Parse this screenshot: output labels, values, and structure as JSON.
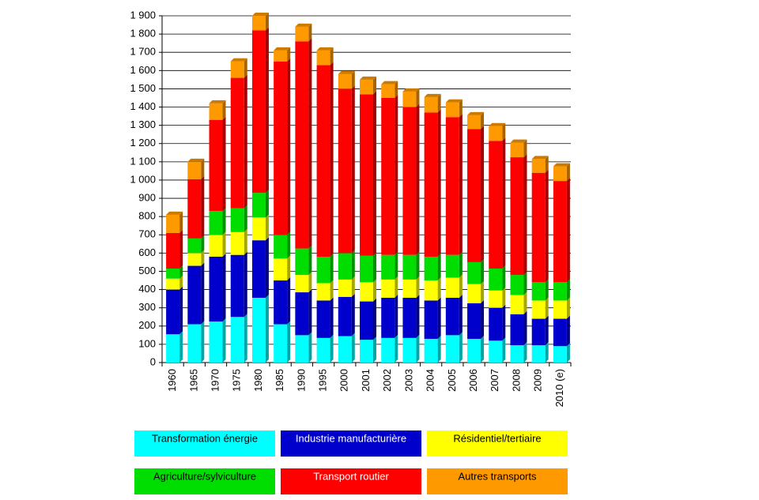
{
  "chart_data": {
    "type": "stacked-bar",
    "categories": [
      "1960",
      "1965",
      "1970",
      "1975",
      "1980",
      "1985",
      "1990",
      "1995",
      "2000",
      "2001",
      "2002",
      "2003",
      "2004",
      "2005",
      "2006",
      "2007",
      "2008",
      "2009",
      "2010 (e)"
    ],
    "series": [
      {
        "name": "Transformation énergie",
        "color": "#00ffff",
        "values": [
          155,
          210,
          225,
          250,
          355,
          210,
          150,
          135,
          145,
          125,
          135,
          135,
          130,
          150,
          130,
          120,
          95,
          95,
          90
        ]
      },
      {
        "name": "Industrie manufacturière",
        "color": "#0000cc",
        "values": [
          245,
          320,
          355,
          340,
          315,
          240,
          235,
          205,
          215,
          210,
          220,
          220,
          210,
          205,
          195,
          180,
          170,
          145,
          150
        ]
      },
      {
        "name": "Résidentiel/tertiaire",
        "color": "#ffff00",
        "values": [
          60,
          70,
          120,
          125,
          125,
          120,
          95,
          95,
          95,
          105,
          100,
          100,
          110,
          110,
          105,
          95,
          105,
          100,
          100
        ]
      },
      {
        "name": "Agriculture/sylviculture",
        "color": "#00dd00",
        "values": [
          55,
          80,
          130,
          130,
          135,
          130,
          145,
          145,
          145,
          145,
          135,
          135,
          130,
          125,
          120,
          120,
          110,
          100,
          100
        ]
      },
      {
        "name": "Transport routier",
        "color": "#ff0000",
        "values": [
          195,
          325,
          500,
          715,
          890,
          950,
          1135,
          1050,
          900,
          885,
          860,
          810,
          790,
          755,
          730,
          700,
          645,
          600,
          555
        ]
      },
      {
        "name": "Autres transports",
        "color": "#ff9900",
        "values": [
          100,
          95,
          90,
          90,
          80,
          60,
          80,
          80,
          80,
          80,
          75,
          85,
          85,
          80,
          75,
          80,
          80,
          75,
          80
        ]
      }
    ],
    "ylim": [
      0,
      1900
    ],
    "yticks": [
      0,
      100,
      200,
      300,
      400,
      500,
      600,
      700,
      800,
      900,
      {
        "value": 1000,
        "label": "1 000"
      },
      {
        "value": 1100,
        "label": "1 100"
      },
      {
        "value": 1200,
        "label": "1 200"
      },
      {
        "value": 1300,
        "label": "1 300"
      },
      {
        "value": 1400,
        "label": "1 400"
      },
      {
        "value": 1500,
        "label": "1 500"
      },
      {
        "value": 1600,
        "label": "1 600"
      },
      {
        "value": 1700,
        "label": "1 700"
      },
      {
        "value": 1800,
        "label": "1 800"
      },
      {
        "value": 1900,
        "label": "1 900"
      }
    ],
    "grid": true
  }
}
